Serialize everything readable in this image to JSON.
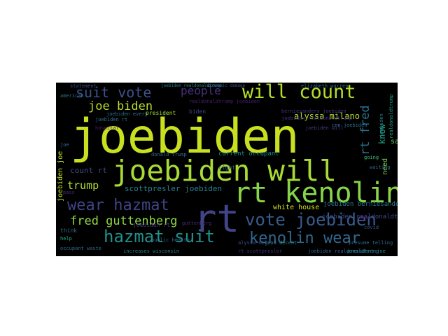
{
  "wordcloud": {
    "background": "#000000",
    "words": [
      {
        "text": "joebiden",
        "color": "#c8e020"
      },
      {
        "text": "joebiden will",
        "color": "#a8db34"
      },
      {
        "text": "rt kenolin",
        "color": "#86d549"
      },
      {
        "text": "rt",
        "color": "#414487"
      },
      {
        "text": "will count",
        "color": "#b5de2b"
      },
      {
        "text": "suit vote",
        "color": "#3b528b"
      },
      {
        "text": "joe biden",
        "color": "#b8de29"
      },
      {
        "text": "people",
        "color": "#472f7d"
      },
      {
        "text": "wear hazmat",
        "color": "#404387"
      },
      {
        "text": "vote joebiden",
        "color": "#365c8d"
      },
      {
        "text": "hazmat suit",
        "color": "#21918c"
      },
      {
        "text": "kenolin wear",
        "color": "#31688e"
      },
      {
        "text": "fred guttenberg",
        "color": "#90d743"
      },
      {
        "text": "trump",
        "color": "#addc30"
      },
      {
        "text": "scottpresler joebiden",
        "color": "#26828e"
      },
      {
        "text": "alyssa milano",
        "color": "#b0dd2f"
      },
      {
        "text": "white house",
        "color": "#d2e21b"
      },
      {
        "text": "joebiden berniesanders",
        "color": "#2a788e"
      },
      {
        "text": "joebiden realdonaldtrump",
        "color": "#3e4a89"
      },
      {
        "text": "current occupant",
        "color": "#238a8d"
      },
      {
        "text": "count rt",
        "color": "#3e4989"
      },
      {
        "text": "rt fred",
        "color": "#2c718e"
      },
      {
        "text": "know",
        "color": "#20a486"
      },
      {
        "text": "say",
        "color": "#63cb5f"
      },
      {
        "text": "need",
        "color": "#7ad151"
      },
      {
        "text": "joebiden joe",
        "color": "#bddf26"
      },
      {
        "text": "think",
        "color": "#31688e"
      },
      {
        "text": "joebiden rt",
        "color": "#433d84"
      },
      {
        "text": "increases wisconsin",
        "color": "#25848e"
      },
      {
        "text": "public health",
        "color": "#2d708e"
      },
      {
        "text": "right",
        "color": "#33638d"
      },
      {
        "text": "biden",
        "color": "#3f4788"
      },
      {
        "text": "realdonaldtrump joebiden",
        "color": "#481c6e"
      },
      {
        "text": "joebiden every",
        "color": "#2e6f8e"
      },
      {
        "text": "president",
        "color": "#a0da39"
      },
      {
        "text": "berniesanders joebiden",
        "color": "#463480"
      },
      {
        "text": "cnn joebiden",
        "color": "#2d708e"
      },
      {
        "text": "good decent",
        "color": "#26818e"
      },
      {
        "text": "rt scottpresler",
        "color": "#46337f"
      },
      {
        "text": "occupant waste",
        "color": "#306a8e"
      },
      {
        "text": "guttenberg",
        "color": "#472c7a"
      },
      {
        "text": "joebiden will",
        "color": "#443983"
      },
      {
        "text": "joe",
        "color": "#2a768e"
      },
      {
        "text": "help",
        "color": "#22a884"
      },
      {
        "text": "pass",
        "color": "#482878"
      },
      {
        "text": "economic damage",
        "color": "#3c4f8a"
      },
      {
        "text": "donald trump",
        "color": "#2e6e8e"
      },
      {
        "text": "going",
        "color": "#3fbc73"
      },
      {
        "text": "waiting",
        "color": "#2f6c8e"
      },
      {
        "text": "realdonaldtrump",
        "color": "#1f9e89"
      },
      {
        "text": "hospital",
        "color": "#481f70"
      },
      {
        "text": "joebiden realdonaldtrump",
        "color": "#46327e"
      },
      {
        "text": "joebiden rt",
        "color": "#2b748e"
      },
      {
        "text": "alyssa milano",
        "color": "#3b518b"
      },
      {
        "text": "make",
        "color": "#450559"
      },
      {
        "text": "american",
        "color": "#2c728e"
      },
      {
        "text": "joebiden realdonaldtrump",
        "color": "#33638d"
      },
      {
        "text": "presume telling",
        "color": "#2f6b8e"
      },
      {
        "text": "president joe",
        "color": "#24878e"
      },
      {
        "text": "covid",
        "color": "#3b528b"
      },
      {
        "text": "elizabeth warren",
        "color": "#306a8e"
      },
      {
        "text": "statement",
        "color": "#3e4989"
      },
      {
        "text": "joebiden realdonaldtrump",
        "color": "#25838e"
      },
      {
        "text": "joebiden",
        "color": "#26818e"
      }
    ]
  }
}
